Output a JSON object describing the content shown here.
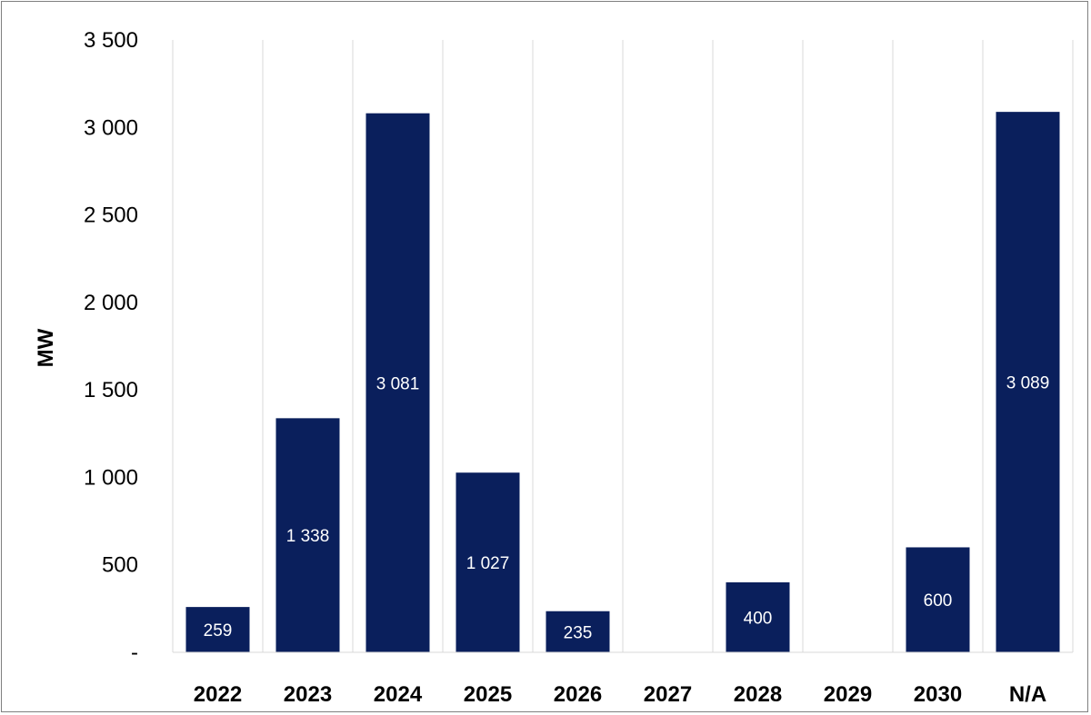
{
  "chart_data": {
    "type": "bar",
    "categories": [
      "2022",
      "2023",
      "2024",
      "2025",
      "2026",
      "2027",
      "2028",
      "2029",
      "2030",
      "N/A"
    ],
    "values": [
      259,
      1338,
      3081,
      1027,
      235,
      0,
      400,
      0,
      600,
      3089
    ],
    "data_labels": [
      "259",
      "1 338",
      "3 081",
      "1 027",
      "235",
      "",
      "400",
      "",
      "600",
      "3 089"
    ],
    "title": "",
    "xlabel": "",
    "ylabel": "MW",
    "ylim": [
      0,
      3500
    ],
    "yticks": [
      0,
      500,
      1000,
      1500,
      2000,
      2500,
      3000,
      3500
    ],
    "ytick_labels": [
      "-",
      "500",
      "1 000",
      "1 500",
      "2 000",
      "2 500",
      "3 000",
      "3 500"
    ],
    "grid": "vertical category separators",
    "legend": "none",
    "bar_color": "#0a1f5c",
    "grid_color": "#d9d9d9"
  }
}
